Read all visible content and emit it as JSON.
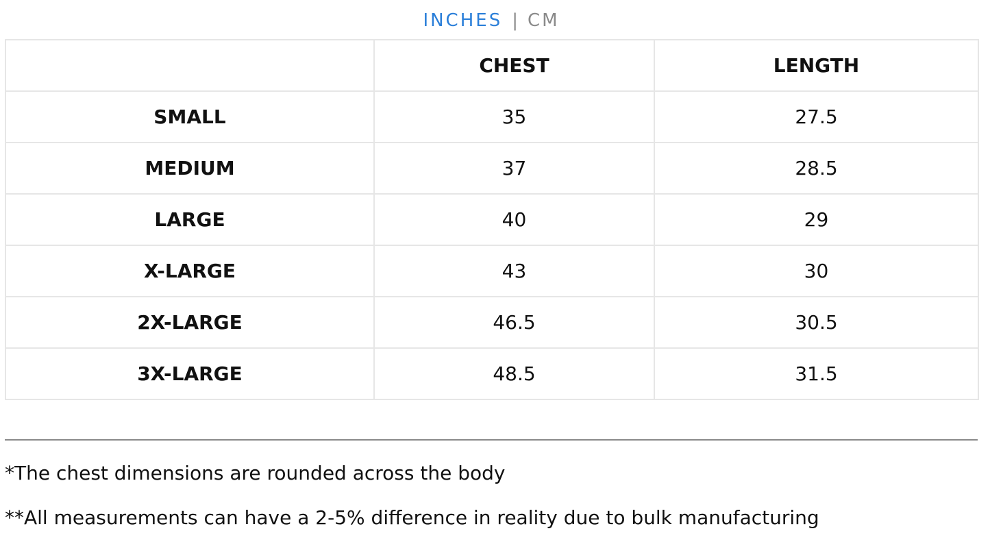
{
  "unit_toggle": {
    "inches_label": "INCHES",
    "separator": "|",
    "cm_label": "CM",
    "active": "INCHES",
    "active_color": "#2b7fd9",
    "inactive_color": "#8a8a8a"
  },
  "table": {
    "headers": [
      "",
      "CHEST",
      "LENGTH"
    ],
    "rows": [
      {
        "size": "SMALL",
        "chest": "35",
        "length": "27.5"
      },
      {
        "size": "MEDIUM",
        "chest": "37",
        "length": "28.5"
      },
      {
        "size": "LARGE",
        "chest": "40",
        "length": "29"
      },
      {
        "size": "X-LARGE",
        "chest": "43",
        "length": "30"
      },
      {
        "size": "2X-LARGE",
        "chest": "46.5",
        "length": "30.5"
      },
      {
        "size": "3X-LARGE",
        "chest": "48.5",
        "length": "31.5"
      }
    ]
  },
  "notes": [
    "*The chest dimensions are rounded across the body",
    "**All measurements can have a 2-5% difference in reality due to bulk manufacturing"
  ]
}
